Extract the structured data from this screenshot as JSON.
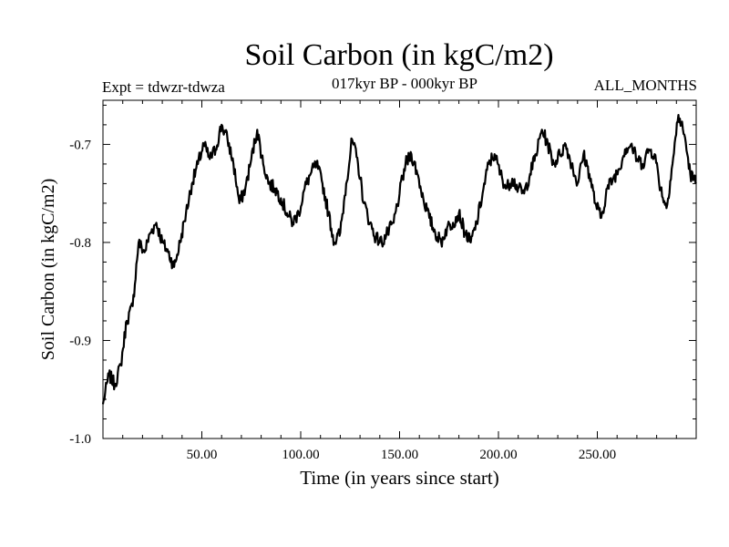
{
  "header": {
    "title": "Soil Carbon (in kgC/m2)",
    "experiment": "Expt = tdwzr-tdwza",
    "period": "017kyr BP - 000kyr BP",
    "months": "ALL_MONTHS"
  },
  "chart_data": {
    "type": "line",
    "title": "Soil Carbon (in kgC/m2)",
    "xlabel": "Time (in years since start)",
    "ylabel": "Soil Carbon (in kgC/m2)",
    "xlim": [
      0,
      300
    ],
    "ylim": [
      -1.0,
      -0.655
    ],
    "xticks": [
      50,
      100,
      150,
      200,
      250
    ],
    "xtick_labels": [
      "50.00",
      "100.00",
      "150.00",
      "200.00",
      "250.00"
    ],
    "yticks": [
      -1.0,
      -0.9,
      -0.8,
      -0.7
    ],
    "ytick_labels": [
      "-1.0",
      "-0.9",
      "-0.8",
      "-0.7"
    ],
    "grid": false,
    "series": [
      {
        "color": "#000000",
        "x": [
          0,
          3,
          6,
          9,
          12,
          15,
          18,
          21,
          24,
          27,
          30,
          33,
          36,
          39,
          42,
          45,
          48,
          51,
          54,
          57,
          60,
          63,
          66,
          69,
          72,
          75,
          78,
          81,
          84,
          87,
          90,
          93,
          96,
          99,
          102,
          105,
          108,
          111,
          114,
          117,
          120,
          123,
          126,
          129,
          132,
          135,
          138,
          141,
          144,
          147,
          150,
          153,
          156,
          159,
          162,
          165,
          168,
          171,
          174,
          177,
          180,
          183,
          186,
          189,
          192,
          195,
          198,
          201,
          204,
          207,
          210,
          213,
          216,
          219,
          222,
          225,
          228,
          231,
          234,
          237,
          240,
          243,
          246,
          249,
          252,
          255,
          258,
          261,
          264,
          267,
          270,
          273,
          276,
          279,
          282,
          285,
          288,
          291,
          294,
          297,
          300
        ],
        "y": [
          -0.965,
          -0.935,
          -0.945,
          -0.925,
          -0.88,
          -0.865,
          -0.8,
          -0.81,
          -0.79,
          -0.78,
          -0.8,
          -0.81,
          -0.825,
          -0.8,
          -0.77,
          -0.74,
          -0.72,
          -0.7,
          -0.715,
          -0.705,
          -0.68,
          -0.695,
          -0.72,
          -0.76,
          -0.745,
          -0.715,
          -0.685,
          -0.72,
          -0.74,
          -0.745,
          -0.755,
          -0.77,
          -0.78,
          -0.77,
          -0.745,
          -0.73,
          -0.72,
          -0.74,
          -0.77,
          -0.8,
          -0.79,
          -0.74,
          -0.695,
          -0.72,
          -0.76,
          -0.78,
          -0.795,
          -0.8,
          -0.79,
          -0.78,
          -0.75,
          -0.72,
          -0.71,
          -0.73,
          -0.755,
          -0.775,
          -0.79,
          -0.8,
          -0.785,
          -0.78,
          -0.77,
          -0.79,
          -0.8,
          -0.78,
          -0.75,
          -0.72,
          -0.71,
          -0.73,
          -0.745,
          -0.735,
          -0.745,
          -0.75,
          -0.73,
          -0.71,
          -0.685,
          -0.7,
          -0.72,
          -0.71,
          -0.7,
          -0.72,
          -0.74,
          -0.71,
          -0.73,
          -0.76,
          -0.775,
          -0.745,
          -0.735,
          -0.725,
          -0.705,
          -0.7,
          -0.715,
          -0.72,
          -0.705,
          -0.71,
          -0.745,
          -0.765,
          -0.72,
          -0.67,
          -0.69,
          -0.73,
          -0.74
        ]
      }
    ]
  }
}
